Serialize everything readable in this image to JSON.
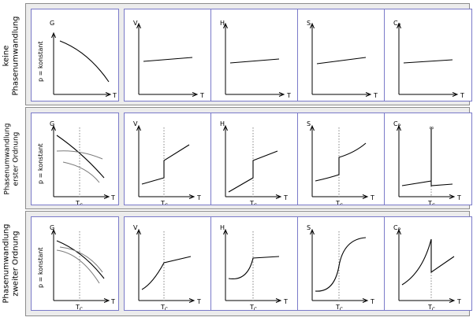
{
  "rows": [
    {
      "label_lines": [
        "keine",
        "Phasenumwandlung"
      ],
      "condition": "p = konstant"
    },
    {
      "label_lines": [
        "Phasenumwandlung",
        "erster Ordnung"
      ],
      "condition": "p = konstant"
    },
    {
      "label_lines": [
        "Phasenumwandlung",
        "zweiter Ordnung"
      ],
      "condition": "p = konstant"
    }
  ],
  "quantities": [
    "G",
    "V",
    "H",
    "S",
    "C"
  ],
  "cp_subscript": "P",
  "x_axis_label": "T",
  "transition_label": "T",
  "transition_subscript": "C",
  "infinity_symbol": "∞"
}
